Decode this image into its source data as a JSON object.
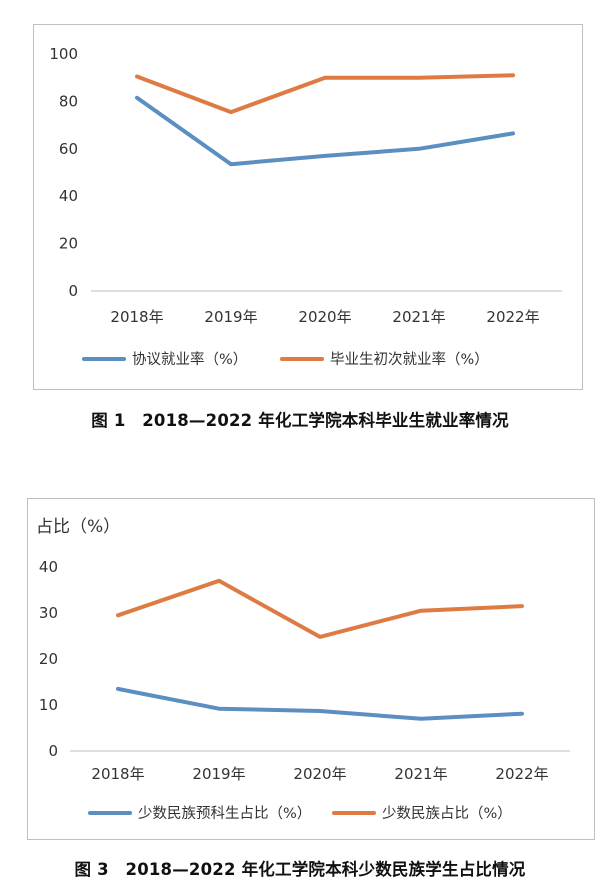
{
  "colors": {
    "series1": "#5b8ec1",
    "series2": "#de7b43",
    "axis": "#bfbfbf",
    "frame": "#bfbfbf"
  },
  "captions": {
    "fig1": "图 1　2018—2022 年化工学院本科毕业生就业率情况",
    "fig3": "图 3　2018—2022 年化工学院本科少数民族学生占比情况"
  },
  "chart_data": [
    {
      "type": "line",
      "title": "",
      "xlabel": "",
      "ylabel": "",
      "categories": [
        "2018年",
        "2019年",
        "2020年",
        "2021年",
        "2022年"
      ],
      "ylim": [
        0,
        100
      ],
      "yticks": [
        "0",
        "20",
        "40",
        "60",
        "80",
        "100"
      ],
      "grid": false,
      "legend": "bottom",
      "series": [
        {
          "name": "协议就业率（%）",
          "color": "#5b8ec1",
          "values": [
            81.5,
            53.5,
            57,
            60,
            66.5
          ]
        },
        {
          "name": "毕业生初次就业率（%）",
          "color": "#de7b43",
          "values": [
            90.5,
            75.5,
            90,
            90,
            91
          ]
        }
      ]
    },
    {
      "type": "line",
      "title": "",
      "xlabel": "",
      "ylabel": "占比（%）",
      "categories": [
        "2018年",
        "2019年",
        "2020年",
        "2021年",
        "2022年"
      ],
      "ylim": [
        0,
        40
      ],
      "yticks": [
        "0",
        "10",
        "20",
        "30",
        "40"
      ],
      "grid": false,
      "legend": "bottom",
      "series": [
        {
          "name": "少数民族预科生占比（%）",
          "color": "#5b8ec1",
          "values": [
            13.5,
            9.2,
            8.7,
            7,
            8.1
          ]
        },
        {
          "name": "少数民族占比（%）",
          "color": "#de7b43",
          "values": [
            29.5,
            37,
            24.8,
            30.5,
            31.5
          ]
        }
      ]
    }
  ]
}
